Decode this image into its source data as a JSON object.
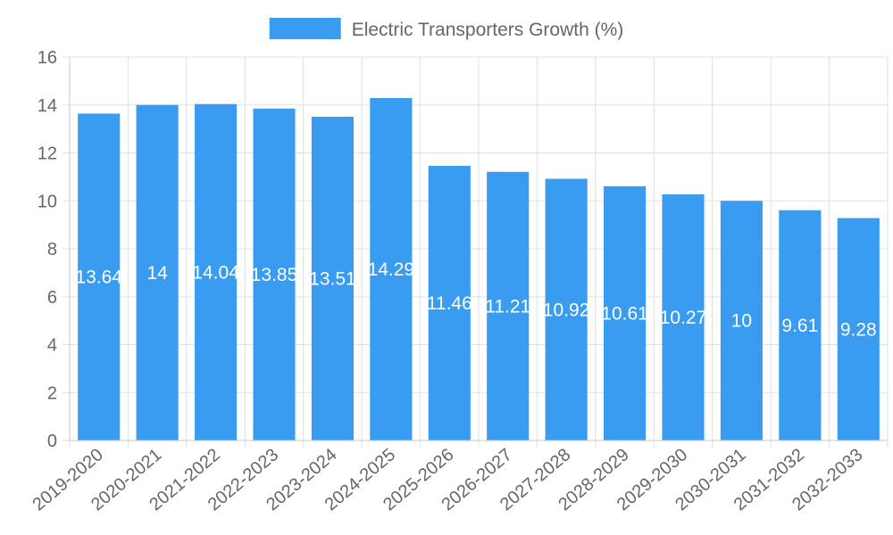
{
  "chart_data": {
    "type": "bar",
    "title": "",
    "xlabel": "",
    "ylabel": "",
    "ylim": [
      0,
      16
    ],
    "ytick_step": 2,
    "grid": true,
    "legend_position": "top-center",
    "categories": [
      "2019-2020",
      "2020-2021",
      "2021-2022",
      "2022-2023",
      "2023-2024",
      "2024-2025",
      "2025-2026",
      "2026-2027",
      "2027-2028",
      "2028-2029",
      "2029-2030",
      "2030-2031",
      "2031-2032",
      "2032-2033"
    ],
    "series": [
      {
        "name": "Electric Transporters Growth (%)",
        "color": "#3a9cf0",
        "values": [
          13.64,
          14,
          14.04,
          13.85,
          13.51,
          14.29,
          11.46,
          11.21,
          10.92,
          10.61,
          10.27,
          10,
          9.61,
          9.28
        ]
      }
    ]
  }
}
